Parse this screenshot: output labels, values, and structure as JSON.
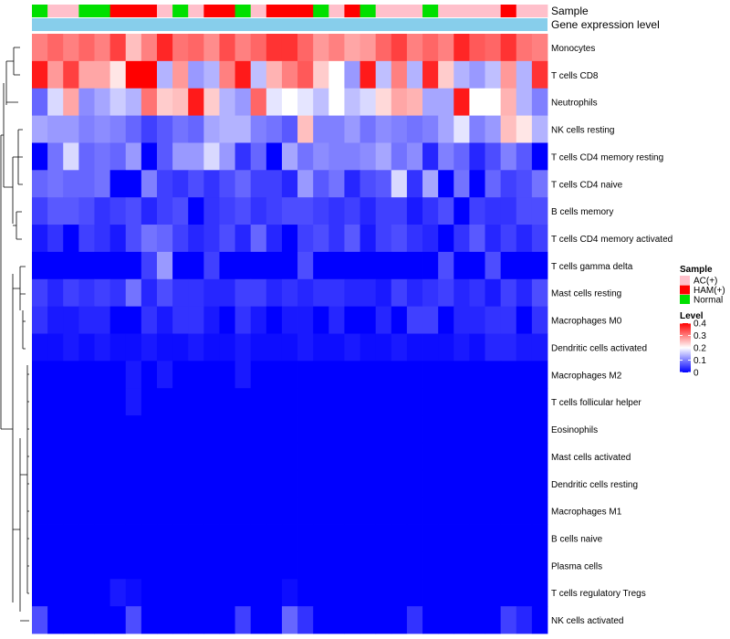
{
  "chart_data": {
    "type": "heatmap",
    "title": "",
    "annotation_tracks": [
      {
        "name": "Sample",
        "label": "Sample"
      },
      {
        "name": "Gene expression level",
        "label": "Gene expression level"
      }
    ],
    "sample_groups": [
      "N",
      "A",
      "A",
      "N",
      "N",
      "H",
      "H",
      "H",
      "A",
      "N",
      "A",
      "H",
      "H",
      "N",
      "A",
      "H",
      "H",
      "H",
      "N",
      "A",
      "H",
      "N",
      "A",
      "A",
      "A",
      "N",
      "A",
      "A",
      "A",
      "A",
      "H",
      "A",
      "A"
    ],
    "sample_legend": {
      "title": "Sample",
      "items": [
        {
          "key": "A",
          "label": "AC(+)",
          "color": "#ffc0cb"
        },
        {
          "key": "H",
          "label": "HAM(+)",
          "color": "#ff0000"
        },
        {
          "key": "N",
          "label": "Normal",
          "color": "#00e000"
        }
      ]
    },
    "expression_track_color": "#87ceeb",
    "level_legend": {
      "title": "Level",
      "ticks": [
        "0.4",
        "0.3",
        "0.2",
        "0.1",
        "0"
      ],
      "tick_values": [
        0.4,
        0.3,
        0.2,
        0.1,
        0
      ],
      "min": 0,
      "max": 0.4,
      "colors": [
        "#0000ff",
        "#ffffff",
        "#ff0000"
      ]
    },
    "rows": [
      "Monocytes",
      "T cells CD8",
      "Neutrophils",
      "NK cells resting",
      "T cells CD4 memory resting",
      "T cells CD4 naive",
      "B cells memory",
      "T cells CD4 memory activated",
      "T cells gamma delta",
      "Mast cells resting",
      "Macrophages M0",
      "Dendritic cells activated",
      "Macrophages M2",
      "T cells follicular helper",
      "Eosinophils",
      "Mast cells activated",
      "Dendritic cells resting",
      "Macrophages M1",
      "B cells naive",
      "Plasma cells",
      "T cells regulatory  Tregs",
      "NK cells activated"
    ],
    "values": [
      [
        0.3,
        0.32,
        0.3,
        0.32,
        0.3,
        0.35,
        0.25,
        0.3,
        0.37,
        0.31,
        0.32,
        0.29,
        0.34,
        0.3,
        0.32,
        0.36,
        0.36,
        0.32,
        0.28,
        0.3,
        0.27,
        0.28,
        0.32,
        0.35,
        0.3,
        0.32,
        0.3,
        0.37,
        0.33,
        0.32,
        0.36,
        0.31,
        0.3
      ],
      [
        0.38,
        0.28,
        0.35,
        0.27,
        0.27,
        0.22,
        0.4,
        0.4,
        0.14,
        0.28,
        0.12,
        0.14,
        0.3,
        0.38,
        0.15,
        0.26,
        0.3,
        0.33,
        0.24,
        0.2,
        0.12,
        0.38,
        0.15,
        0.3,
        0.14,
        0.37,
        0.24,
        0.14,
        0.12,
        0.15,
        0.28,
        0.14,
        0.36
      ],
      [
        0.08,
        0.17,
        0.27,
        0.11,
        0.13,
        0.16,
        0.14,
        0.31,
        0.24,
        0.25,
        0.38,
        0.24,
        0.14,
        0.12,
        0.32,
        0.18,
        0.2,
        0.18,
        0.15,
        0.2,
        0.15,
        0.17,
        0.23,
        0.27,
        0.26,
        0.13,
        0.13,
        0.38,
        0.2,
        0.2,
        0.26,
        0.14,
        0.1
      ],
      [
        0.13,
        0.12,
        0.12,
        0.1,
        0.11,
        0.1,
        0.08,
        0.05,
        0.07,
        0.09,
        0.08,
        0.13,
        0.14,
        0.14,
        0.1,
        0.09,
        0.07,
        0.25,
        0.1,
        0.1,
        0.12,
        0.09,
        0.11,
        0.1,
        0.09,
        0.1,
        0.13,
        0.18,
        0.1,
        0.12,
        0.25,
        0.22,
        0.14
      ],
      [
        0.0,
        0.09,
        0.17,
        0.08,
        0.09,
        0.08,
        0.12,
        0.0,
        0.07,
        0.12,
        0.12,
        0.17,
        0.12,
        0.04,
        0.08,
        0.0,
        0.13,
        0.09,
        0.11,
        0.1,
        0.1,
        0.11,
        0.13,
        0.09,
        0.11,
        0.03,
        0.1,
        0.08,
        0.03,
        0.06,
        0.1,
        0.07,
        0.0
      ],
      [
        0.08,
        0.09,
        0.08,
        0.08,
        0.09,
        0.0,
        0.0,
        0.1,
        0.05,
        0.04,
        0.06,
        0.04,
        0.06,
        0.08,
        0.05,
        0.05,
        0.03,
        0.12,
        0.07,
        0.09,
        0.03,
        0.06,
        0.07,
        0.17,
        0.04,
        0.13,
        0.0,
        0.09,
        0.0,
        0.08,
        0.05,
        0.06,
        0.09
      ],
      [
        0.05,
        0.07,
        0.07,
        0.06,
        0.04,
        0.05,
        0.06,
        0.03,
        0.05,
        0.06,
        0.0,
        0.04,
        0.05,
        0.06,
        0.04,
        0.05,
        0.06,
        0.06,
        0.05,
        0.04,
        0.05,
        0.03,
        0.05,
        0.05,
        0.02,
        0.04,
        0.06,
        0.0,
        0.05,
        0.04,
        0.04,
        0.06,
        0.06
      ],
      [
        0.02,
        0.04,
        0.0,
        0.05,
        0.04,
        0.02,
        0.06,
        0.09,
        0.08,
        0.05,
        0.03,
        0.04,
        0.06,
        0.03,
        0.08,
        0.03,
        0.0,
        0.05,
        0.06,
        0.04,
        0.07,
        0.02,
        0.05,
        0.06,
        0.04,
        0.03,
        0.0,
        0.04,
        0.07,
        0.03,
        0.05,
        0.03,
        0.05
      ],
      [
        0.0,
        0.0,
        0.0,
        0.0,
        0.0,
        0.0,
        0.0,
        0.05,
        0.12,
        0.0,
        0.0,
        0.05,
        0.0,
        0.0,
        0.0,
        0.0,
        0.0,
        0.06,
        0.0,
        0.0,
        0.0,
        0.0,
        0.0,
        0.0,
        0.0,
        0.0,
        0.06,
        0.0,
        0.0,
        0.06,
        0.0,
        0.0,
        0.0
      ],
      [
        0.05,
        0.03,
        0.05,
        0.04,
        0.05,
        0.04,
        0.09,
        0.03,
        0.06,
        0.04,
        0.04,
        0.03,
        0.03,
        0.05,
        0.05,
        0.03,
        0.04,
        0.03,
        0.04,
        0.04,
        0.03,
        0.03,
        0.02,
        0.05,
        0.03,
        0.04,
        0.05,
        0.03,
        0.04,
        0.02,
        0.05,
        0.03,
        0.06
      ],
      [
        0.04,
        0.02,
        0.02,
        0.03,
        0.03,
        0.0,
        0.0,
        0.04,
        0.02,
        0.04,
        0.04,
        0.02,
        0.0,
        0.04,
        0.02,
        0.0,
        0.02,
        0.02,
        0.0,
        0.03,
        0.0,
        0.0,
        0.03,
        0.0,
        0.05,
        0.05,
        0.0,
        0.03,
        0.03,
        0.04,
        0.04,
        0.0,
        0.04
      ],
      [
        0.01,
        0.01,
        0.02,
        0.01,
        0.02,
        0.01,
        0.01,
        0.02,
        0.01,
        0.01,
        0.02,
        0.01,
        0.01,
        0.02,
        0.01,
        0.01,
        0.01,
        0.02,
        0.01,
        0.01,
        0.02,
        0.01,
        0.01,
        0.02,
        0.01,
        0.01,
        0.01,
        0.02,
        0.01,
        0.03,
        0.03,
        0.02,
        0.02
      ],
      [
        0.0,
        0.0,
        0.0,
        0.0,
        0.0,
        0.0,
        0.02,
        0.0,
        0.02,
        0.0,
        0.0,
        0.0,
        0.0,
        0.02,
        0.0,
        0.0,
        0.0,
        0.0,
        0.0,
        0.0,
        0.0,
        0.0,
        0.0,
        0.0,
        0.0,
        0.0,
        0.0,
        0.0,
        0.0,
        0.0,
        0.0,
        0.0,
        0.0
      ],
      [
        0.0,
        0.0,
        0.0,
        0.0,
        0.0,
        0.0,
        0.02,
        0.0,
        0.0,
        0.0,
        0.0,
        0.0,
        0.0,
        0.0,
        0.0,
        0.0,
        0.0,
        0.0,
        0.0,
        0.0,
        0.0,
        0.0,
        0.0,
        0.0,
        0.0,
        0.0,
        0.0,
        0.0,
        0.0,
        0.0,
        0.0,
        0.0,
        0.0
      ],
      [
        0.0,
        0.0,
        0.0,
        0.0,
        0.0,
        0.0,
        0.0,
        0.0,
        0.0,
        0.0,
        0.0,
        0.0,
        0.0,
        0.0,
        0.0,
        0.0,
        0.0,
        0.0,
        0.0,
        0.0,
        0.0,
        0.0,
        0.0,
        0.0,
        0.0,
        0.0,
        0.0,
        0.0,
        0.0,
        0.0,
        0.0,
        0.0,
        0.0
      ],
      [
        0.0,
        0.0,
        0.0,
        0.0,
        0.0,
        0.0,
        0.0,
        0.0,
        0.0,
        0.0,
        0.0,
        0.0,
        0.0,
        0.0,
        0.0,
        0.0,
        0.0,
        0.0,
        0.0,
        0.0,
        0.0,
        0.0,
        0.0,
        0.0,
        0.0,
        0.0,
        0.0,
        0.0,
        0.0,
        0.0,
        0.0,
        0.0,
        0.0
      ],
      [
        0.0,
        0.0,
        0.0,
        0.0,
        0.0,
        0.0,
        0.0,
        0.0,
        0.0,
        0.0,
        0.0,
        0.0,
        0.0,
        0.0,
        0.0,
        0.0,
        0.0,
        0.0,
        0.0,
        0.0,
        0.0,
        0.0,
        0.0,
        0.0,
        0.0,
        0.0,
        0.0,
        0.0,
        0.0,
        0.0,
        0.0,
        0.0,
        0.0
      ],
      [
        0.0,
        0.0,
        0.0,
        0.0,
        0.0,
        0.0,
        0.0,
        0.0,
        0.0,
        0.0,
        0.0,
        0.0,
        0.0,
        0.0,
        0.0,
        0.0,
        0.0,
        0.0,
        0.0,
        0.0,
        0.0,
        0.0,
        0.0,
        0.0,
        0.0,
        0.0,
        0.0,
        0.0,
        0.0,
        0.0,
        0.0,
        0.0,
        0.0
      ],
      [
        0.0,
        0.0,
        0.0,
        0.0,
        0.0,
        0.0,
        0.0,
        0.0,
        0.0,
        0.0,
        0.0,
        0.0,
        0.0,
        0.0,
        0.0,
        0.0,
        0.0,
        0.0,
        0.0,
        0.0,
        0.0,
        0.0,
        0.0,
        0.0,
        0.0,
        0.0,
        0.0,
        0.0,
        0.0,
        0.0,
        0.0,
        0.0,
        0.0
      ],
      [
        0.0,
        0.0,
        0.0,
        0.0,
        0.0,
        0.0,
        0.0,
        0.0,
        0.0,
        0.0,
        0.0,
        0.0,
        0.0,
        0.0,
        0.0,
        0.0,
        0.0,
        0.0,
        0.0,
        0.0,
        0.0,
        0.0,
        0.0,
        0.0,
        0.0,
        0.0,
        0.0,
        0.0,
        0.0,
        0.0,
        0.0,
        0.0,
        0.0
      ],
      [
        0.0,
        0.0,
        0.0,
        0.0,
        0.0,
        0.02,
        0.01,
        0.0,
        0.0,
        0.0,
        0.0,
        0.0,
        0.0,
        0.0,
        0.0,
        0.0,
        0.01,
        0.0,
        0.0,
        0.0,
        0.0,
        0.0,
        0.0,
        0.0,
        0.0,
        0.0,
        0.0,
        0.0,
        0.0,
        0.0,
        0.0,
        0.0,
        0.0
      ],
      [
        0.06,
        0.0,
        0.0,
        0.0,
        0.0,
        0.0,
        0.06,
        0.0,
        0.0,
        0.0,
        0.0,
        0.0,
        0.0,
        0.05,
        0.0,
        0.0,
        0.08,
        0.04,
        0.0,
        0.0,
        0.0,
        0.0,
        0.0,
        0.0,
        0.04,
        0.0,
        0.0,
        0.0,
        0.0,
        0.0,
        0.05,
        0.03,
        0.0
      ]
    ]
  }
}
